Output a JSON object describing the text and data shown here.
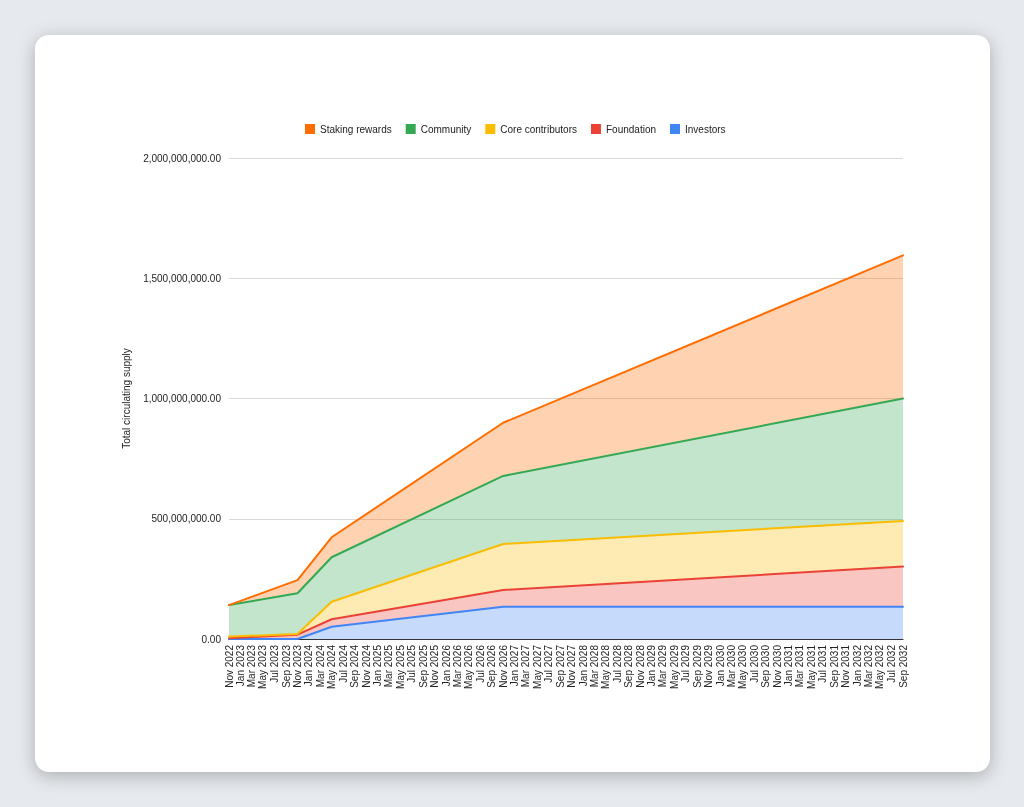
{
  "chart_data": {
    "type": "area",
    "stacked": true,
    "ylabel": "Total circulating supply",
    "legend": "top",
    "grid": "y",
    "marker": "none",
    "x": [
      "2022-11",
      "2023-11",
      "2024-05",
      "2026-11",
      "2032-09"
    ],
    "xlim": [
      "2022-11",
      "2032-09"
    ],
    "xticks": [
      {
        "value": "2022-11",
        "label": "Nov 2022"
      },
      {
        "value": "2023-01",
        "label": "Jan 2023"
      },
      {
        "value": "2023-03",
        "label": "Mar 2023"
      },
      {
        "value": "2023-05",
        "label": "May 2023"
      },
      {
        "value": "2023-07",
        "label": "Jul 2023"
      },
      {
        "value": "2023-09",
        "label": "Sep 2023"
      },
      {
        "value": "2023-11",
        "label": "Nov 2023"
      },
      {
        "value": "2024-01",
        "label": "Jan 2024"
      },
      {
        "value": "2024-03",
        "label": "Mar 2024"
      },
      {
        "value": "2024-05",
        "label": "May 2024"
      },
      {
        "value": "2024-07",
        "label": "Jul 2024"
      },
      {
        "value": "2024-09",
        "label": "Sep 2024"
      },
      {
        "value": "2024-11",
        "label": "Nov 2024"
      },
      {
        "value": "2025-01",
        "label": "Jan 2025"
      },
      {
        "value": "2025-03",
        "label": "Mar 2025"
      },
      {
        "value": "2025-05",
        "label": "May 2025"
      },
      {
        "value": "2025-07",
        "label": "Jul 2025"
      },
      {
        "value": "2025-09",
        "label": "Sep 2025"
      },
      {
        "value": "2025-11",
        "label": "Nov 2025"
      },
      {
        "value": "2026-01",
        "label": "Jan 2026"
      },
      {
        "value": "2026-03",
        "label": "Mar 2026"
      },
      {
        "value": "2026-05",
        "label": "May 2026"
      },
      {
        "value": "2026-07",
        "label": "Jul 2026"
      },
      {
        "value": "2026-09",
        "label": "Sep 2026"
      },
      {
        "value": "2026-11",
        "label": "Nov 2026"
      },
      {
        "value": "2027-01",
        "label": "Jan 2027"
      },
      {
        "value": "2027-03",
        "label": "Mar 2027"
      },
      {
        "value": "2027-05",
        "label": "May 2027"
      },
      {
        "value": "2027-07",
        "label": "Jul 2027"
      },
      {
        "value": "2027-09",
        "label": "Sep 2027"
      },
      {
        "value": "2027-11",
        "label": "Nov 2027"
      },
      {
        "value": "2028-01",
        "label": "Jan 2028"
      },
      {
        "value": "2028-03",
        "label": "Mar 2028"
      },
      {
        "value": "2028-05",
        "label": "May 2028"
      },
      {
        "value": "2028-07",
        "label": "Jul 2028"
      },
      {
        "value": "2028-09",
        "label": "Sep 2028"
      },
      {
        "value": "2028-11",
        "label": "Nov 2028"
      },
      {
        "value": "2029-01",
        "label": "Jan 2029"
      },
      {
        "value": "2029-03",
        "label": "Mar 2029"
      },
      {
        "value": "2029-05",
        "label": "May 2029"
      },
      {
        "value": "2029-07",
        "label": "Jul 2029"
      },
      {
        "value": "2029-09",
        "label": "Sep 2029"
      },
      {
        "value": "2029-11",
        "label": "Nov 2029"
      },
      {
        "value": "2030-01",
        "label": "Jan 2030"
      },
      {
        "value": "2030-03",
        "label": "Mar 2030"
      },
      {
        "value": "2030-05",
        "label": "May 2030"
      },
      {
        "value": "2030-07",
        "label": "Jul 2030"
      },
      {
        "value": "2030-09",
        "label": "Sep 2030"
      },
      {
        "value": "2030-11",
        "label": "Nov 2030"
      },
      {
        "value": "2031-01",
        "label": "Jan 2031"
      },
      {
        "value": "2031-03",
        "label": "Mar 2031"
      },
      {
        "value": "2031-05",
        "label": "May 2031"
      },
      {
        "value": "2031-07",
        "label": "Jul 2031"
      },
      {
        "value": "2031-09",
        "label": "Sep 2031"
      },
      {
        "value": "2031-11",
        "label": "Nov 2031"
      },
      {
        "value": "2032-01",
        "label": "Jan 2032"
      },
      {
        "value": "2032-03",
        "label": "Mar 2032"
      },
      {
        "value": "2032-05",
        "label": "May 2032"
      },
      {
        "value": "2032-07",
        "label": "Jul 2032"
      },
      {
        "value": "2032-09",
        "label": "Sep 2032"
      }
    ],
    "ylim": [
      0,
      2000000000
    ],
    "yticks": [
      {
        "value": 0,
        "label": "0.00"
      },
      {
        "value": 500000000,
        "label": "500,000,000.00"
      },
      {
        "value": 1000000000,
        "label": "1,000,000,000.00"
      },
      {
        "value": 1500000000,
        "label": "1,500,000,000.00"
      },
      {
        "value": 2000000000,
        "label": "2,000,000,000.00"
      }
    ],
    "series": [
      {
        "name": "Investors",
        "color": "#4285f4",
        "values": [
          0,
          0,
          51000000,
          134000000,
          134000000
        ]
      },
      {
        "name": "Foundation",
        "color": "#ea4335",
        "values": [
          3000000,
          18000000,
          31000000,
          70000000,
          167000000
        ]
      },
      {
        "name": "Core contributors",
        "color": "#fbbc04",
        "values": [
          7000000,
          3000000,
          73000000,
          191000000,
          190000000
        ]
      },
      {
        "name": "Community",
        "color": "#34a853",
        "values": [
          131000000,
          169000000,
          185000000,
          283000000,
          509000000
        ]
      },
      {
        "name": "Staking rewards",
        "color": "#ff6d01",
        "values": [
          0,
          55000000,
          83000000,
          221000000,
          595000000
        ]
      }
    ]
  }
}
